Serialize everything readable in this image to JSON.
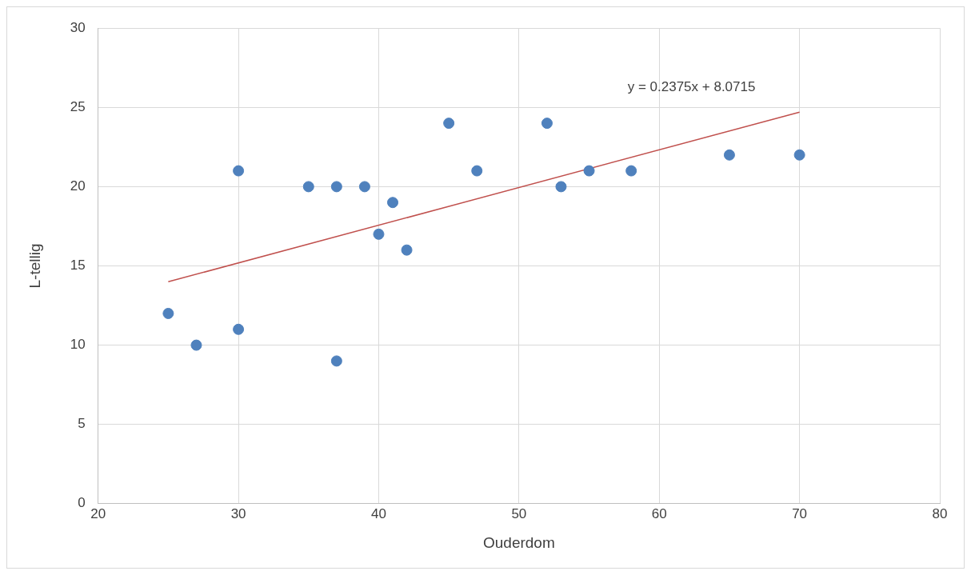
{
  "chart_data": {
    "type": "scatter",
    "xlabel": "Ouderdom",
    "ylabel": "L-tellig",
    "xlim": [
      20,
      80
    ],
    "xticks": [
      20,
      30,
      40,
      50,
      60,
      70,
      80
    ],
    "ylim": [
      0,
      30
    ],
    "yticks": [
      0,
      5,
      10,
      15,
      20,
      25,
      30
    ],
    "grid": true,
    "legend": false,
    "series": [
      {
        "color": "#4f81bd",
        "marker": "circle",
        "x": [
          25,
          27,
          30,
          30,
          35,
          37,
          37,
          39,
          40,
          41,
          42,
          45,
          47,
          52,
          53,
          55,
          58,
          65,
          70
        ],
        "values": [
          12,
          10,
          21,
          11,
          20,
          20,
          9,
          20,
          17,
          19,
          16,
          24,
          21,
          24,
          20,
          21,
          21,
          22,
          22
        ]
      },
      {
        "type": "line",
        "marker": "none",
        "color": "#c0504d",
        "x": [
          25,
          70
        ],
        "values": [
          14.0,
          24.7
        ]
      }
    ],
    "annotations": [
      "y = 0.2375x + 8.0715"
    ]
  }
}
